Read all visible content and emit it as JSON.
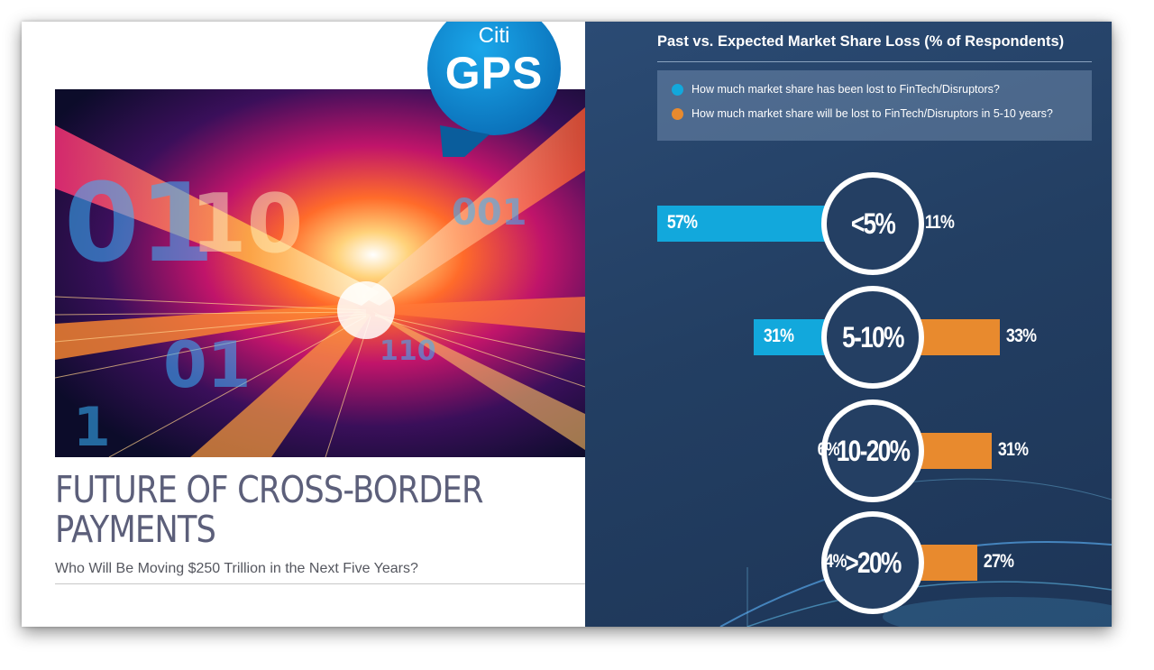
{
  "logo": {
    "brand": "Citi",
    "product": "GPS"
  },
  "cover": {
    "title_line1": "FUTURE OF CROSS-BORDER",
    "title_line2": "PAYMENTS",
    "subtitle": "Who Will Be Moving $250 Trillion in the Next Five Years?"
  },
  "colors": {
    "past": "#12a8dc",
    "future": "#e88a2e",
    "panel": "#233f63"
  },
  "chart_data": {
    "type": "bar",
    "title": "Past vs. Expected Market Share Loss (% of Respondents)",
    "categories": [
      "<5%",
      "5-10%",
      "10-20%",
      ">20%"
    ],
    "series": [
      {
        "name": "How much market share has been lost to FinTech/Disruptors?",
        "values": [
          57,
          31,
          6,
          4
        ],
        "labels": [
          "57%",
          "31%",
          "6%",
          "4%"
        ]
      },
      {
        "name": "How much market share will be lost to FinTech/Disruptors in 5-10 years?",
        "values": [
          11,
          33,
          31,
          27
        ],
        "labels": [
          "11%",
          "33%",
          "31%",
          "27%"
        ]
      }
    ],
    "legend": "top",
    "grid": false
  }
}
